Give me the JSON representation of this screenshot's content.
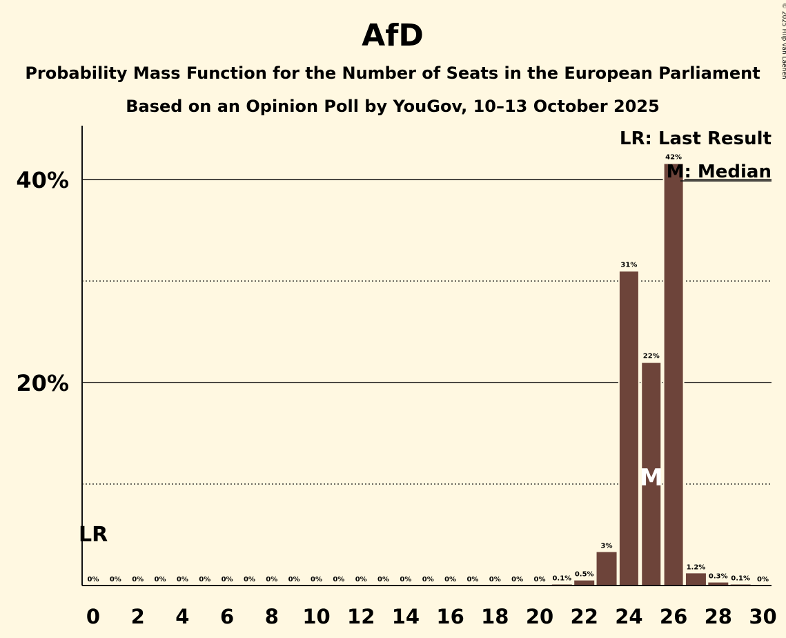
{
  "chart_data": {
    "type": "bar",
    "title": "AfD",
    "subtitle_1": "Probability Mass Function for the Number of Seats in the European Parliament",
    "subtitle_2": "Based on an Opinion Poll by YouGov, 10–13 October 2025",
    "copyright": "© 2025 Filip van Laenen",
    "x": [
      0,
      1,
      2,
      3,
      4,
      5,
      6,
      7,
      8,
      9,
      10,
      11,
      12,
      13,
      14,
      15,
      16,
      17,
      18,
      19,
      20,
      21,
      22,
      23,
      24,
      25,
      26,
      27,
      28,
      29,
      30
    ],
    "values": [
      0,
      0,
      0,
      0,
      0,
      0,
      0,
      0,
      0,
      0,
      0,
      0,
      0,
      0,
      0,
      0,
      0,
      0,
      0,
      0,
      0,
      0.1,
      0.5,
      3.3,
      31,
      22,
      41.6,
      1.2,
      0.3,
      0.1,
      0
    ],
    "data_labels": [
      "0%",
      "0%",
      "0%",
      "0%",
      "0%",
      "0%",
      "0%",
      "0%",
      "0%",
      "0%",
      "0%",
      "0%",
      "0%",
      "0%",
      "0%",
      "0%",
      "0%",
      "0%",
      "0%",
      "0%",
      "0%",
      "0.1%",
      "0.5%",
      "3%",
      "31%",
      "22%",
      "42%",
      "1.2%",
      "0.3%",
      "0.1%",
      "0%"
    ],
    "xticks": [
      "0",
      "2",
      "4",
      "6",
      "8",
      "10",
      "12",
      "14",
      "16",
      "18",
      "20",
      "22",
      "24",
      "26",
      "28",
      "30"
    ],
    "yticks": [
      "20%",
      "40%"
    ],
    "ylim": [
      0,
      45
    ],
    "y_major_gridlines": [
      20,
      40
    ],
    "y_minor_gridlines": [
      10,
      30
    ],
    "last_result_seat": 0,
    "median_seat": 25,
    "lr_marker": "LR",
    "median_marker": "M",
    "legend": [
      "LR: Last Result",
      "M: Median"
    ],
    "bar_color": "#6d443a"
  }
}
